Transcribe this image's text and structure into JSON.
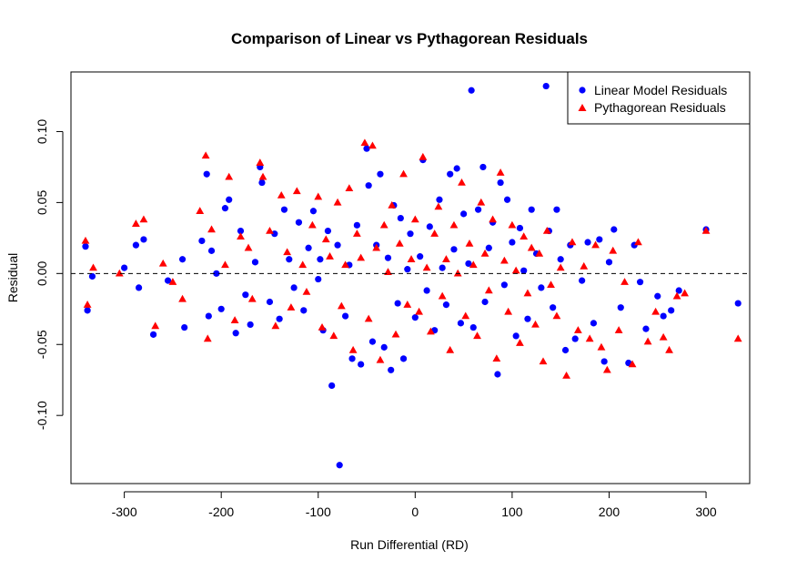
{
  "chart_data": {
    "type": "scatter",
    "title": "Comparison of Linear vs Pythagorean Residuals",
    "xlabel": "Run Differential (RD)",
    "ylabel": "Residual",
    "xlim": [
      -355,
      345
    ],
    "ylim": [
      -0.148,
      0.142
    ],
    "x_ticks": [
      -300,
      -200,
      -100,
      0,
      100,
      200,
      300
    ],
    "x_tick_labels": [
      "-300",
      "-200",
      "-100",
      "0",
      "100",
      "200",
      "300"
    ],
    "y_ticks": [
      -0.1,
      -0.05,
      0.0,
      0.05,
      0.1
    ],
    "y_tick_labels": [
      "-0.10",
      "-0.05",
      "0.00",
      "0.05",
      "0.10"
    ],
    "reference_line": {
      "y": 0,
      "style": "dashed",
      "color": "#000000"
    },
    "grid": false,
    "legend_position": "top-right",
    "series": [
      {
        "name": "Linear Model Residuals",
        "marker": "circle",
        "color": "#0000FF",
        "points": [
          [
            -340,
            0.019
          ],
          [
            -338,
            -0.026
          ],
          [
            -333,
            -0.002
          ],
          [
            -300,
            0.004
          ],
          [
            -288,
            0.02
          ],
          [
            -285,
            -0.01
          ],
          [
            -280,
            0.024
          ],
          [
            -270,
            -0.043
          ],
          [
            -255,
            -0.005
          ],
          [
            -240,
            0.01
          ],
          [
            -238,
            -0.038
          ],
          [
            -220,
            0.023
          ],
          [
            -215,
            0.07
          ],
          [
            -213,
            -0.03
          ],
          [
            -210,
            0.016
          ],
          [
            -205,
            0.0
          ],
          [
            -200,
            -0.025
          ],
          [
            -196,
            0.046
          ],
          [
            -192,
            0.052
          ],
          [
            -185,
            -0.042
          ],
          [
            -180,
            0.03
          ],
          [
            -175,
            -0.015
          ],
          [
            -170,
            -0.036
          ],
          [
            -165,
            0.008
          ],
          [
            -160,
            0.075
          ],
          [
            -158,
            0.064
          ],
          [
            -150,
            -0.02
          ],
          [
            -145,
            0.028
          ],
          [
            -140,
            -0.032
          ],
          [
            -135,
            0.045
          ],
          [
            -130,
            0.01
          ],
          [
            -125,
            -0.01
          ],
          [
            -120,
            0.036
          ],
          [
            -115,
            -0.026
          ],
          [
            -110,
            0.018
          ],
          [
            -105,
            0.044
          ],
          [
            -100,
            -0.004
          ],
          [
            -98,
            0.01
          ],
          [
            -95,
            -0.04
          ],
          [
            -90,
            0.03
          ],
          [
            -86,
            -0.079
          ],
          [
            -80,
            0.02
          ],
          [
            -78,
            -0.135
          ],
          [
            -72,
            -0.03
          ],
          [
            -68,
            0.006
          ],
          [
            -65,
            -0.06
          ],
          [
            -60,
            0.034
          ],
          [
            -56,
            -0.064
          ],
          [
            -50,
            0.088
          ],
          [
            -48,
            0.062
          ],
          [
            -44,
            -0.048
          ],
          [
            -40,
            0.02
          ],
          [
            -36,
            0.07
          ],
          [
            -32,
            -0.052
          ],
          [
            -28,
            0.011
          ],
          [
            -25,
            -0.068
          ],
          [
            -22,
            0.048
          ],
          [
            -18,
            -0.021
          ],
          [
            -15,
            0.039
          ],
          [
            -12,
            -0.06
          ],
          [
            -8,
            0.003
          ],
          [
            -5,
            0.028
          ],
          [
            0,
            -0.031
          ],
          [
            5,
            0.012
          ],
          [
            8,
            0.08
          ],
          [
            12,
            -0.012
          ],
          [
            15,
            0.033
          ],
          [
            20,
            -0.04
          ],
          [
            25,
            0.052
          ],
          [
            28,
            0.004
          ],
          [
            32,
            -0.022
          ],
          [
            36,
            0.07
          ],
          [
            40,
            0.017
          ],
          [
            43,
            0.074
          ],
          [
            47,
            -0.035
          ],
          [
            50,
            0.042
          ],
          [
            55,
            0.007
          ],
          [
            58,
            0.129
          ],
          [
            60,
            -0.038
          ],
          [
            65,
            0.045
          ],
          [
            70,
            0.075
          ],
          [
            72,
            -0.02
          ],
          [
            76,
            0.018
          ],
          [
            80,
            0.036
          ],
          [
            85,
            -0.071
          ],
          [
            88,
            0.064
          ],
          [
            92,
            -0.008
          ],
          [
            95,
            0.052
          ],
          [
            100,
            0.022
          ],
          [
            104,
            -0.044
          ],
          [
            108,
            0.032
          ],
          [
            112,
            0.002
          ],
          [
            116,
            -0.032
          ],
          [
            120,
            0.045
          ],
          [
            125,
            0.014
          ],
          [
            130,
            -0.01
          ],
          [
            135,
            0.132
          ],
          [
            138,
            0.03
          ],
          [
            142,
            -0.024
          ],
          [
            146,
            0.045
          ],
          [
            150,
            0.01
          ],
          [
            155,
            -0.054
          ],
          [
            160,
            0.02
          ],
          [
            165,
            -0.046
          ],
          [
            172,
            -0.005
          ],
          [
            178,
            0.022
          ],
          [
            184,
            -0.035
          ],
          [
            190,
            0.024
          ],
          [
            195,
            -0.062
          ],
          [
            200,
            0.008
          ],
          [
            205,
            0.031
          ],
          [
            212,
            -0.024
          ],
          [
            220,
            -0.063
          ],
          [
            226,
            0.02
          ],
          [
            232,
            -0.006
          ],
          [
            238,
            -0.039
          ],
          [
            250,
            -0.016
          ],
          [
            256,
            -0.03
          ],
          [
            264,
            -0.026
          ],
          [
            272,
            -0.012
          ],
          [
            300,
            0.031
          ],
          [
            333,
            -0.021
          ]
        ]
      },
      {
        "name": "Pythagorean Residuals",
        "marker": "triangle",
        "color": "#FF0000",
        "points": [
          [
            -340,
            0.023
          ],
          [
            -338,
            -0.022
          ],
          [
            -332,
            0.004
          ],
          [
            -305,
            0.0
          ],
          [
            -288,
            0.035
          ],
          [
            -280,
            0.038
          ],
          [
            -268,
            -0.037
          ],
          [
            -260,
            0.007
          ],
          [
            -250,
            -0.006
          ],
          [
            -240,
            -0.018
          ],
          [
            -222,
            0.044
          ],
          [
            -216,
            0.083
          ],
          [
            -214,
            -0.046
          ],
          [
            -210,
            0.031
          ],
          [
            -196,
            0.006
          ],
          [
            -192,
            0.068
          ],
          [
            -186,
            -0.033
          ],
          [
            -180,
            0.026
          ],
          [
            -172,
            0.018
          ],
          [
            -168,
            -0.018
          ],
          [
            -160,
            0.078
          ],
          [
            -157,
            0.068
          ],
          [
            -150,
            0.03
          ],
          [
            -144,
            -0.037
          ],
          [
            -138,
            0.055
          ],
          [
            -132,
            0.015
          ],
          [
            -128,
            -0.024
          ],
          [
            -122,
            0.058
          ],
          [
            -116,
            0.006
          ],
          [
            -112,
            -0.013
          ],
          [
            -106,
            0.034
          ],
          [
            -100,
            0.054
          ],
          [
            -96,
            -0.038
          ],
          [
            -92,
            0.024
          ],
          [
            -88,
            0.012
          ],
          [
            -84,
            -0.044
          ],
          [
            -80,
            0.05
          ],
          [
            -76,
            -0.023
          ],
          [
            -72,
            0.006
          ],
          [
            -68,
            0.06
          ],
          [
            -64,
            -0.054
          ],
          [
            -60,
            0.028
          ],
          [
            -56,
            0.011
          ],
          [
            -52,
            0.092
          ],
          [
            -48,
            -0.032
          ],
          [
            -44,
            0.09
          ],
          [
            -40,
            0.018
          ],
          [
            -36,
            -0.061
          ],
          [
            -32,
            0.034
          ],
          [
            -28,
            0.001
          ],
          [
            -24,
            0.048
          ],
          [
            -20,
            -0.043
          ],
          [
            -16,
            0.021
          ],
          [
            -12,
            0.07
          ],
          [
            -8,
            -0.022
          ],
          [
            -4,
            0.01
          ],
          [
            0,
            0.038
          ],
          [
            4,
            -0.027
          ],
          [
            8,
            0.082
          ],
          [
            12,
            0.004
          ],
          [
            16,
            -0.041
          ],
          [
            20,
            0.028
          ],
          [
            24,
            0.047
          ],
          [
            28,
            -0.016
          ],
          [
            32,
            0.01
          ],
          [
            36,
            -0.054
          ],
          [
            40,
            0.034
          ],
          [
            44,
            0.0
          ],
          [
            48,
            0.064
          ],
          [
            52,
            -0.03
          ],
          [
            56,
            0.021
          ],
          [
            60,
            0.006
          ],
          [
            64,
            -0.044
          ],
          [
            68,
            0.05
          ],
          [
            72,
            0.014
          ],
          [
            76,
            -0.012
          ],
          [
            80,
            0.038
          ],
          [
            84,
            -0.06
          ],
          [
            88,
            0.071
          ],
          [
            92,
            0.009
          ],
          [
            96,
            -0.027
          ],
          [
            100,
            0.034
          ],
          [
            104,
            0.002
          ],
          [
            108,
            -0.049
          ],
          [
            112,
            0.026
          ],
          [
            116,
            -0.014
          ],
          [
            120,
            0.018
          ],
          [
            124,
            -0.036
          ],
          [
            128,
            0.014
          ],
          [
            132,
            -0.062
          ],
          [
            136,
            0.03
          ],
          [
            140,
            -0.008
          ],
          [
            146,
            -0.03
          ],
          [
            150,
            0.004
          ],
          [
            156,
            -0.072
          ],
          [
            162,
            0.022
          ],
          [
            168,
            -0.04
          ],
          [
            174,
            0.005
          ],
          [
            180,
            -0.046
          ],
          [
            186,
            0.02
          ],
          [
            192,
            -0.052
          ],
          [
            198,
            -0.068
          ],
          [
            204,
            0.016
          ],
          [
            210,
            -0.04
          ],
          [
            216,
            -0.006
          ],
          [
            224,
            -0.064
          ],
          [
            230,
            0.022
          ],
          [
            240,
            -0.048
          ],
          [
            248,
            -0.027
          ],
          [
            256,
            -0.045
          ],
          [
            262,
            -0.054
          ],
          [
            270,
            -0.016
          ],
          [
            278,
            -0.014
          ],
          [
            300,
            0.03
          ],
          [
            333,
            -0.046
          ]
        ]
      }
    ]
  }
}
